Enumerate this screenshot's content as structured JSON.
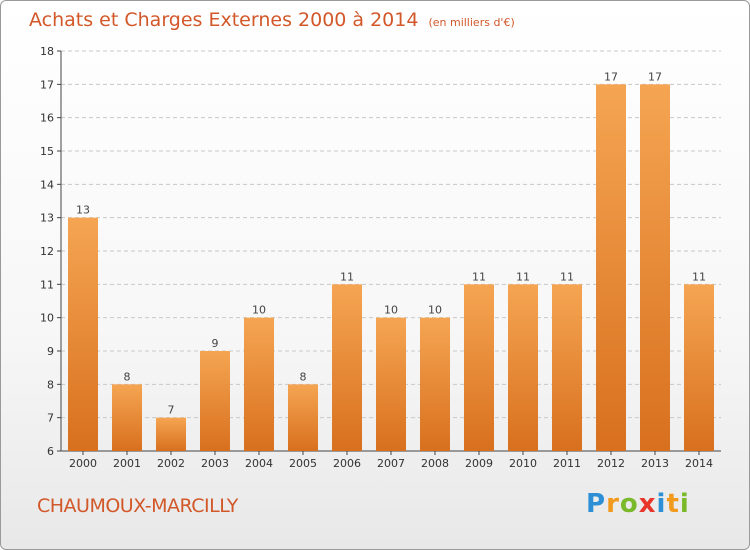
{
  "title": "Achats et Charges Externes 2000 à 2014",
  "unit": "(en milliers d'€)",
  "commune": "CHAUMOUX-MARCILLY",
  "logo": {
    "letters": [
      "P",
      "r",
      "o",
      "x",
      "i",
      "t",
      "i"
    ],
    "colors": [
      "#2d8fd5",
      "#f29a1e",
      "#7ab929",
      "#e8362b",
      "#2d8fd5",
      "#f29a1e",
      "#7ab929"
    ]
  },
  "colors": {
    "bar_top": "#f5a552",
    "bar_bottom": "#d8701e",
    "title": "#d2582a",
    "axis": "#444444",
    "grid": "#c8c8c8"
  },
  "chart_data": {
    "type": "bar",
    "categories": [
      "2000",
      "2001",
      "2002",
      "2003",
      "2004",
      "2005",
      "2006",
      "2007",
      "2008",
      "2009",
      "2010",
      "2011",
      "2012",
      "2013",
      "2014"
    ],
    "values": [
      13,
      8,
      7,
      9,
      10,
      8,
      11,
      10,
      10,
      11,
      11,
      11,
      17,
      17,
      11
    ],
    "data_labels": [
      "13",
      "8",
      "7",
      "9",
      "10",
      "8",
      "11",
      "10",
      "10",
      "11",
      "11",
      "11",
      "17",
      "17",
      "11"
    ],
    "yticks": [
      "6",
      "7",
      "8",
      "9",
      "10",
      "11",
      "12",
      "13",
      "14",
      "15",
      "16",
      "17",
      "18"
    ],
    "ylim": [
      6,
      18
    ],
    "grid": "horizontal dashed",
    "title": "Achats et Charges Externes 2000 à 2014",
    "xlabel": "",
    "ylabel": ""
  }
}
